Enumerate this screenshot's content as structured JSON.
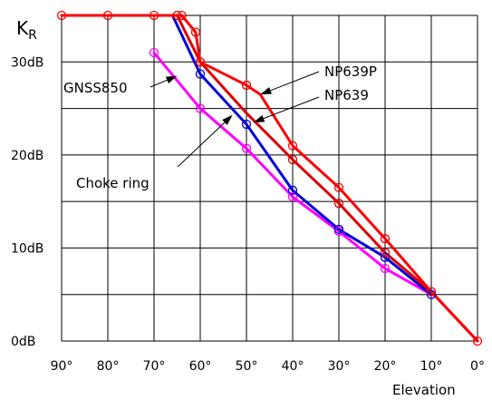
{
  "chart_data": {
    "type": "line",
    "title": "",
    "ylabel": "KR",
    "ylabel_main": "K",
    "ylabel_sub": "R",
    "xlabel": "Elevation",
    "x_tick_labels": [
      "90°",
      "80°",
      "70°",
      "60°",
      "50°",
      "40°",
      "30°",
      "20°",
      "10°",
      "0°"
    ],
    "y_tick_labels": [
      "0dB",
      "10dB",
      "20dB",
      "30dB"
    ],
    "x_ticks": [
      90,
      80,
      70,
      60,
      50,
      40,
      30,
      20,
      10,
      0
    ],
    "y_ticks": [
      0,
      10,
      20,
      30
    ],
    "xlim": [
      90,
      0
    ],
    "ylim": [
      0,
      35
    ],
    "grid": true,
    "series": [
      {
        "name": "NP639P",
        "color": "#ff0000",
        "points": [
          [
            100,
            35
          ],
          [
            90,
            35
          ],
          [
            80,
            35
          ],
          [
            70,
            35
          ],
          [
            64,
            35
          ],
          [
            61,
            33.2
          ],
          [
            60,
            30
          ],
          [
            50,
            27.5
          ],
          [
            47,
            26.5
          ],
          [
            40,
            21
          ],
          [
            30,
            16.5
          ],
          [
            20,
            11
          ],
          [
            10,
            5.3
          ],
          [
            0,
            0
          ]
        ],
        "markers": [
          [
            90,
            35
          ],
          [
            80,
            35
          ],
          [
            70,
            35
          ],
          [
            64,
            35
          ],
          [
            61,
            33.2
          ],
          [
            60,
            30
          ],
          [
            50,
            27.5
          ],
          [
            40,
            21
          ],
          [
            30,
            16.5
          ],
          [
            20,
            11
          ],
          [
            10,
            5.3
          ],
          [
            0,
            0
          ]
        ]
      },
      {
        "name": "NP639",
        "color": "#dd0000",
        "points": [
          [
            100,
            35
          ],
          [
            65,
            35
          ],
          [
            60,
            30
          ],
          [
            50,
            24.5
          ],
          [
            40,
            19.5
          ],
          [
            30,
            14.8
          ],
          [
            20,
            9.5
          ],
          [
            10,
            5.3
          ],
          [
            0,
            0
          ]
        ],
        "markers": [
          [
            65,
            35
          ],
          [
            40,
            19.5
          ],
          [
            30,
            14.8
          ],
          [
            20,
            9.5
          ]
        ]
      },
      {
        "name": "GNSS850",
        "color": "#0000dd",
        "points": [
          [
            66,
            35
          ],
          [
            60,
            28.7
          ],
          [
            50,
            23.3
          ],
          [
            40,
            16.2
          ],
          [
            30,
            12
          ],
          [
            20,
            9
          ],
          [
            10,
            5
          ]
        ],
        "markers": [
          [
            60,
            28.7
          ],
          [
            50,
            23.3
          ],
          [
            40,
            16.2
          ],
          [
            30,
            12
          ],
          [
            20,
            9
          ],
          [
            10,
            5
          ]
        ]
      },
      {
        "name": "Choke ring",
        "color": "#ff00ff",
        "points": [
          [
            70,
            31
          ],
          [
            60,
            25
          ],
          [
            50,
            20.7
          ],
          [
            40,
            15.5
          ],
          [
            30,
            11.8
          ],
          [
            20,
            7.8
          ],
          [
            10,
            5
          ]
        ],
        "markers": [
          [
            70,
            31
          ],
          [
            60,
            25
          ],
          [
            50,
            20.7
          ],
          [
            40,
            15.5
          ],
          [
            30,
            11.8
          ],
          [
            20,
            7.8
          ]
        ]
      }
    ],
    "annotations": [
      {
        "text": "NP639P",
        "target": [
          47,
          26.5
        ]
      },
      {
        "text": "NP639",
        "target": [
          48.5,
          23.5
        ]
      },
      {
        "text": "GNSS850",
        "target": [
          65,
          28.5
        ]
      },
      {
        "text": "Choke ring",
        "target": [
          53,
          24.3
        ]
      }
    ]
  }
}
